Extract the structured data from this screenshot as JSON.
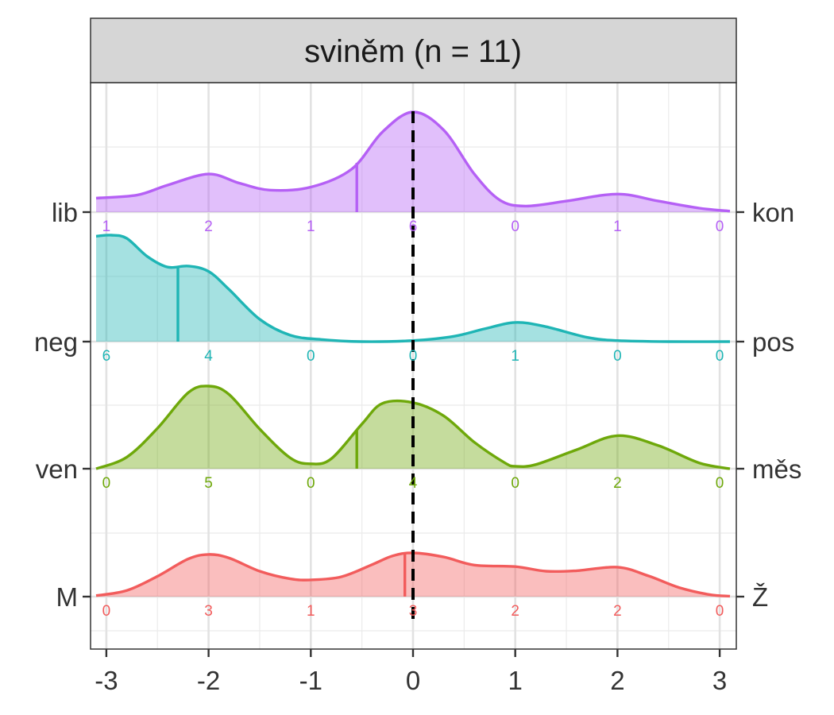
{
  "chart_data": {
    "type": "ridgeline",
    "title": "sviněm (n = 11)",
    "xlabel": "",
    "ylabel": "",
    "xlim": [
      -3.1,
      3.1
    ],
    "x_ticks": [
      -3,
      -2,
      -1,
      0,
      1,
      2,
      3
    ],
    "x_tick_labels": [
      "-3",
      "-2",
      "-1",
      "0",
      "1",
      "2",
      "3"
    ],
    "reference_line_x": 0,
    "count_positions": [
      -3,
      -2,
      -1,
      0,
      1,
      2,
      3
    ],
    "grid": true,
    "series": [
      {
        "left_label": "lib",
        "right_label": "kon",
        "color": "#B560F5",
        "counts": [
          1,
          2,
          1,
          6,
          0,
          1,
          0
        ],
        "mean": -0.55,
        "density_x": [
          -3.1,
          -2.7,
          -2.4,
          -2.0,
          -1.7,
          -1.4,
          -1.0,
          -0.6,
          -0.3,
          0.0,
          0.3,
          0.6,
          0.85,
          1.1,
          1.5,
          2.0,
          2.4,
          2.8,
          3.1
        ],
        "density_y": [
          0.14,
          0.17,
          0.27,
          0.38,
          0.29,
          0.22,
          0.25,
          0.43,
          0.8,
          1.0,
          0.82,
          0.38,
          0.12,
          0.06,
          0.11,
          0.18,
          0.11,
          0.04,
          0.01
        ]
      },
      {
        "left_label": "neg",
        "right_label": "pos",
        "color": "#1FB5B5",
        "counts": [
          6,
          4,
          0,
          0,
          1,
          0,
          0
        ],
        "mean": -2.3,
        "density_x": [
          -3.1,
          -2.95,
          -2.8,
          -2.6,
          -2.4,
          -2.2,
          -2.0,
          -1.8,
          -1.5,
          -1.2,
          -0.9,
          -0.5,
          0.0,
          0.4,
          0.7,
          1.0,
          1.3,
          1.7,
          2.0,
          2.5,
          3.1
        ],
        "density_y": [
          0.99,
          1.0,
          0.97,
          0.8,
          0.7,
          0.71,
          0.66,
          0.49,
          0.21,
          0.06,
          0.02,
          0.0,
          0.01,
          0.05,
          0.12,
          0.18,
          0.14,
          0.04,
          0.01,
          0.0,
          0.0
        ]
      },
      {
        "left_label": "ven",
        "right_label": "měs",
        "color": "#6EA80A",
        "counts": [
          0,
          5,
          0,
          4,
          0,
          2,
          0
        ],
        "mean": -0.55,
        "density_x": [
          -3.1,
          -2.8,
          -2.5,
          -2.2,
          -2.0,
          -1.8,
          -1.5,
          -1.2,
          -1.0,
          -0.8,
          -0.5,
          -0.3,
          0.0,
          0.3,
          0.6,
          0.9,
          1.0,
          1.2,
          1.6,
          2.0,
          2.4,
          2.8,
          3.1
        ],
        "density_y": [
          0.0,
          0.14,
          0.49,
          0.92,
          1.0,
          0.9,
          0.48,
          0.13,
          0.06,
          0.12,
          0.54,
          0.79,
          0.8,
          0.64,
          0.32,
          0.07,
          0.03,
          0.05,
          0.23,
          0.4,
          0.28,
          0.07,
          0.0
        ]
      },
      {
        "left_label": "M",
        "right_label": "Ž",
        "color": "#F25C5C",
        "counts": [
          0,
          3,
          1,
          3,
          2,
          2,
          0
        ],
        "mean": -0.08,
        "density_x": [
          -3.1,
          -2.8,
          -2.5,
          -2.2,
          -2.0,
          -1.8,
          -1.5,
          -1.2,
          -1.0,
          -0.7,
          -0.4,
          -0.2,
          0.0,
          0.3,
          0.6,
          1.0,
          1.3,
          1.6,
          2.0,
          2.3,
          2.6,
          2.9,
          3.1
        ],
        "density_y": [
          0.02,
          0.12,
          0.4,
          0.74,
          0.83,
          0.76,
          0.5,
          0.35,
          0.33,
          0.39,
          0.63,
          0.8,
          0.86,
          0.78,
          0.62,
          0.59,
          0.5,
          0.51,
          0.58,
          0.41,
          0.18,
          0.04,
          0.01
        ]
      }
    ]
  }
}
